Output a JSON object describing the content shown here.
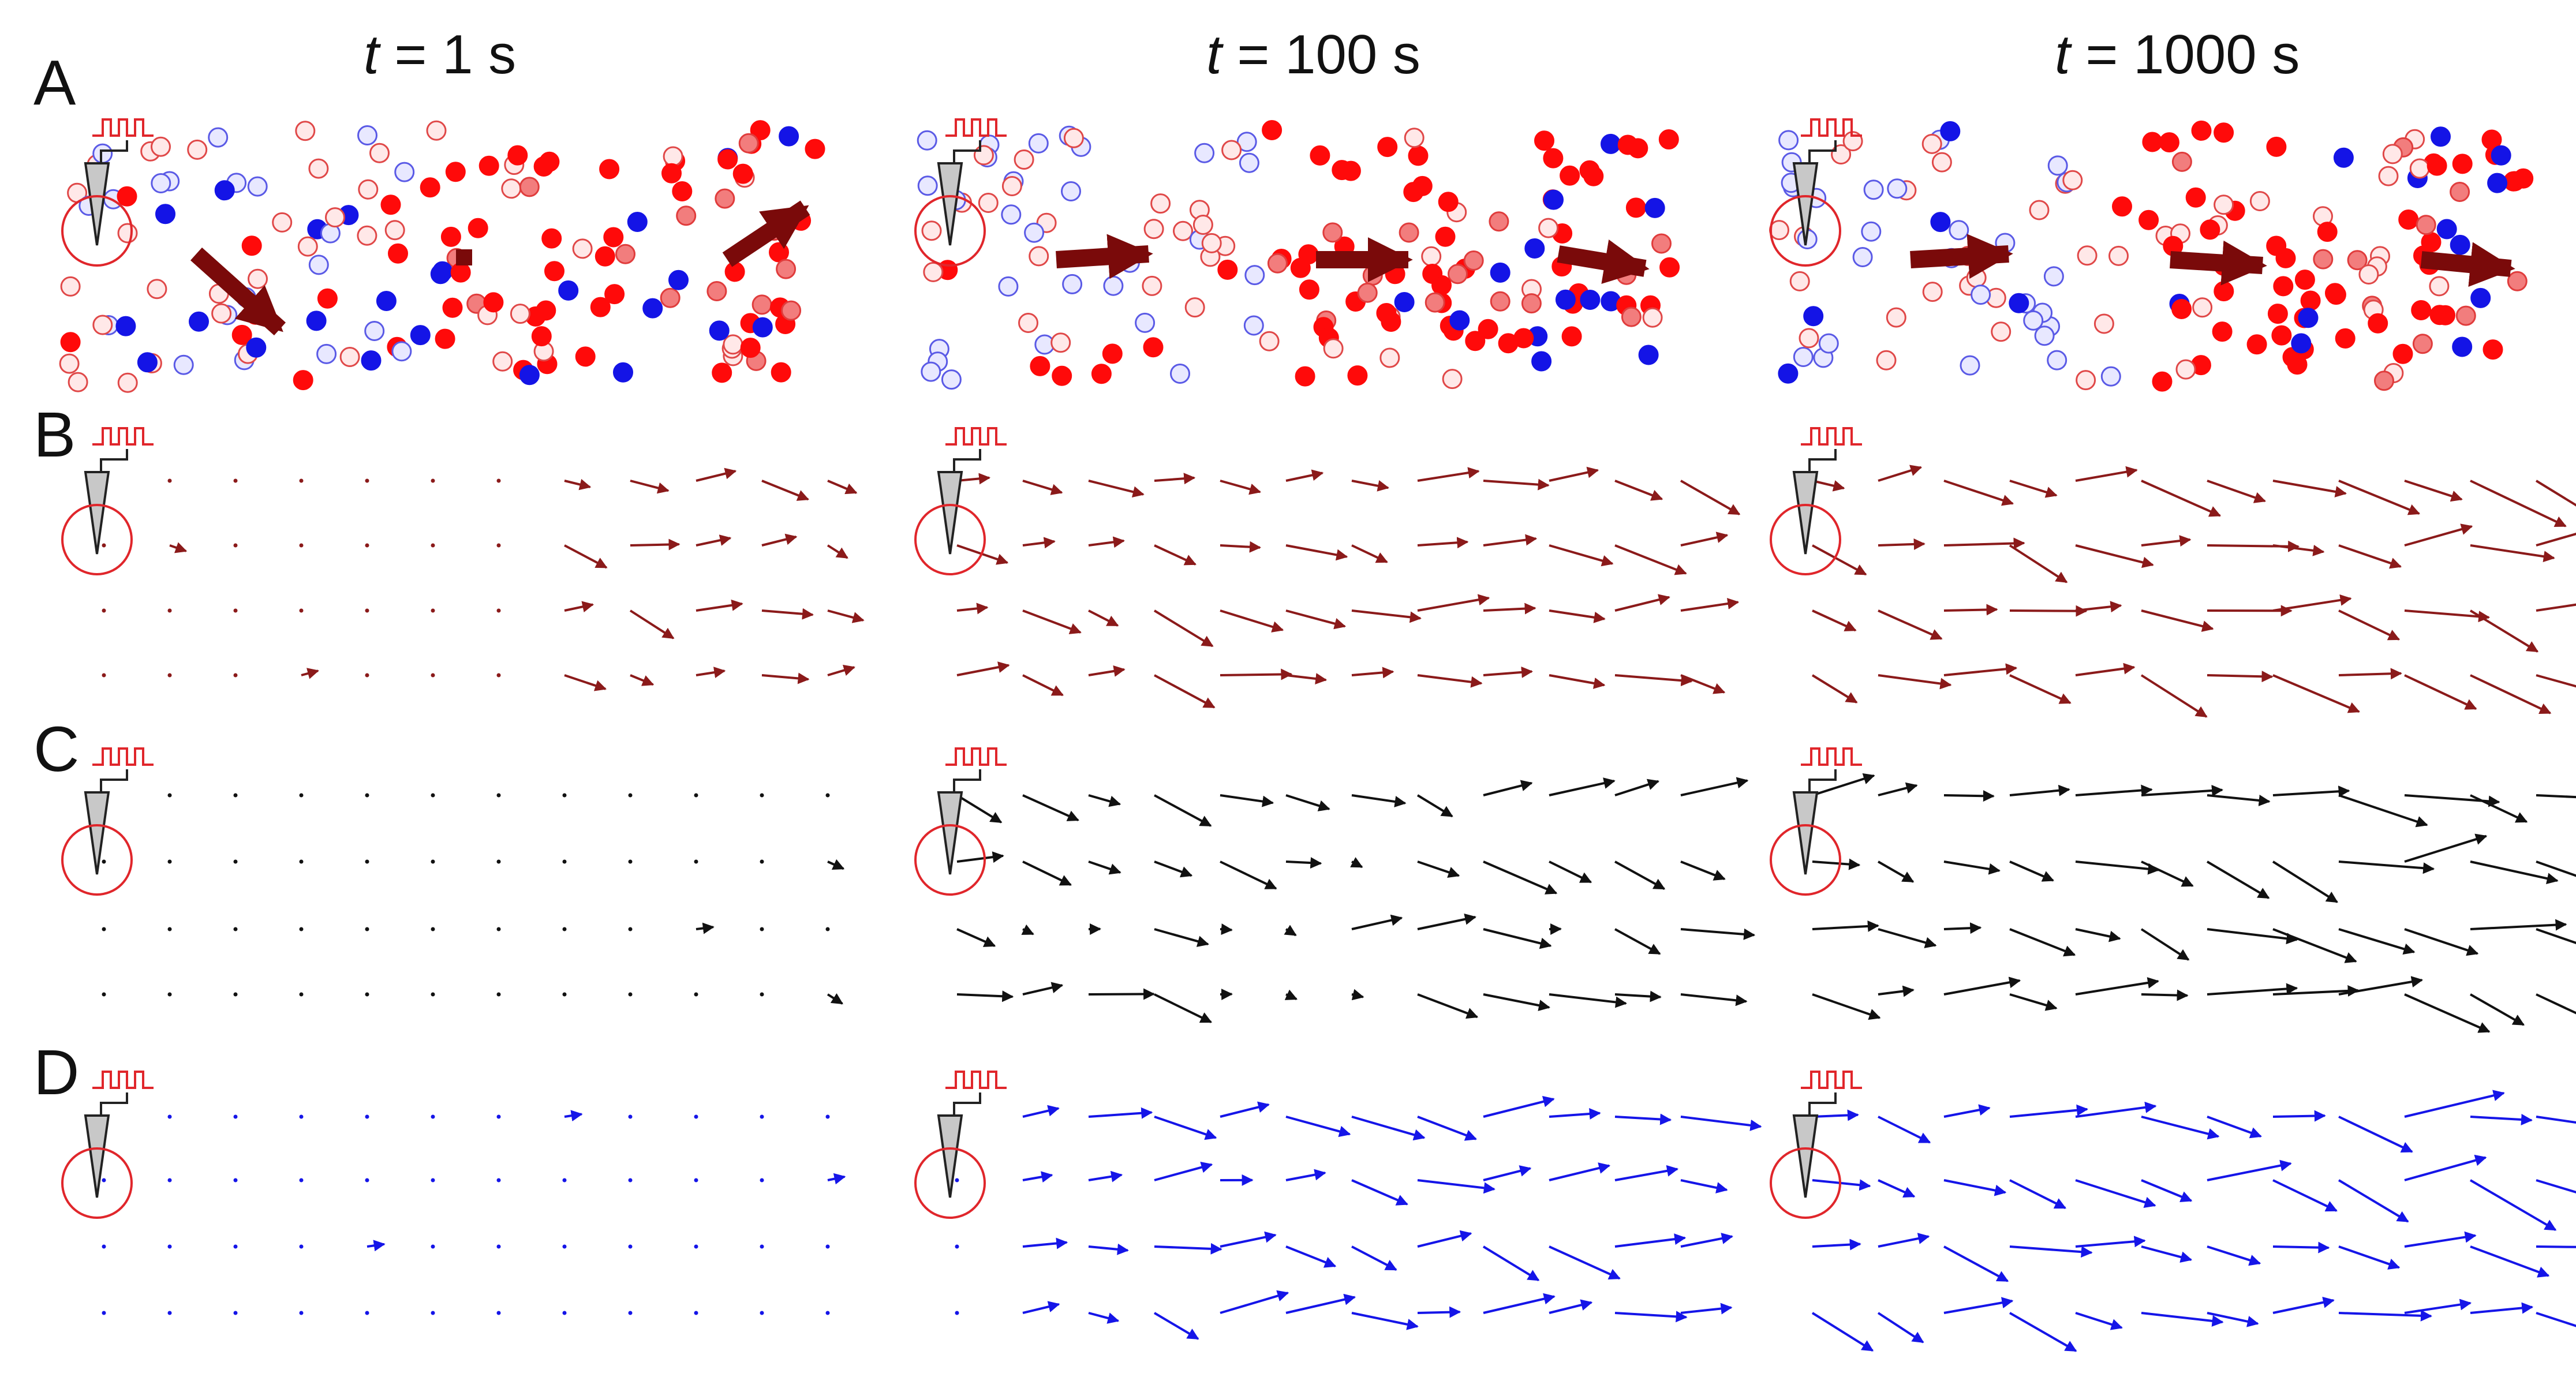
{
  "column_titles": [
    {
      "var": "t",
      "rest": " = 1 s"
    },
    {
      "var": "t",
      "rest": " = 100 s"
    },
    {
      "var": "t",
      "rest": " = 1000 s"
    }
  ],
  "row_labels": [
    "A",
    "B",
    "C",
    "D"
  ],
  "colors": {
    "stimulus": "#e0262b",
    "electrode_fill": "#c8c8c8",
    "arrow_A": "#7a0a0a",
    "arrow_B": "#8b1a1a",
    "arrow_C": "#111111",
    "arrow_D": "#1515e8",
    "neuron_red": "#ff0a0a",
    "neuron_blue": "#1414e6"
  },
  "icons": [
    "pulse-train-icon",
    "electrode-icon",
    "stimulation-circle-icon",
    "flow-arrow-icon",
    "neuron-dot-icon"
  ]
}
